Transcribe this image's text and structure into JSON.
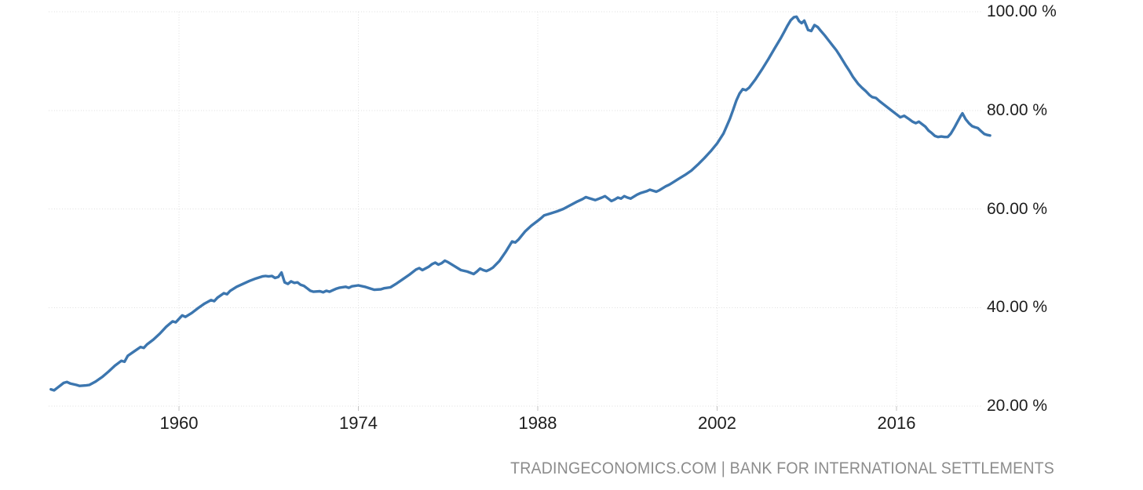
{
  "chart": {
    "attribution": {
      "left": "TRADINGECONOMICS.COM",
      "separator": " | ",
      "right": "BANK FOR INTERNATIONAL SETTLEMENTS"
    },
    "colors": {
      "line": "#3c76af",
      "grid": "#dfdfdf",
      "tick": "#c3c3c3",
      "axis_text": "#1d1d1d",
      "attribution_text": "#8c8c8c",
      "background": "#ffffff"
    }
  },
  "chart_data": {
    "type": "line",
    "title": "",
    "grid": {
      "style": "dotted",
      "horizontal": true,
      "vertical": true
    },
    "x_axis": {
      "ticks": [
        1960,
        1974,
        1988,
        2002,
        2016
      ],
      "tick_labels": [
        "1960",
        "1974",
        "1988",
        "2002",
        "2016"
      ],
      "range_years": [
        1950.0,
        2023.3
      ]
    },
    "y_axis": {
      "side": "right",
      "unit": "%",
      "ticks": [
        100,
        80,
        60,
        40,
        20
      ],
      "tick_labels": [
        "100.00 %",
        "80.00 %",
        "60.00 %",
        "40.00 %",
        "20.00 %"
      ],
      "range": [
        20,
        100
      ]
    },
    "series": [
      {
        "color": "#3c76af",
        "points": [
          [
            1950.0,
            23.4
          ],
          [
            1950.25,
            23.2
          ],
          [
            1950.5,
            23.7
          ],
          [
            1950.75,
            24.2
          ],
          [
            1951.0,
            24.7
          ],
          [
            1951.25,
            24.9
          ],
          [
            1951.5,
            24.6
          ],
          [
            1952.0,
            24.3
          ],
          [
            1952.25,
            24.1
          ],
          [
            1952.75,
            24.2
          ],
          [
            1953.0,
            24.3
          ],
          [
            1953.5,
            25.0
          ],
          [
            1954.0,
            25.9
          ],
          [
            1954.5,
            27.0
          ],
          [
            1955.0,
            28.2
          ],
          [
            1955.25,
            28.7
          ],
          [
            1955.5,
            29.2
          ],
          [
            1955.75,
            29.0
          ],
          [
            1956.0,
            30.2
          ],
          [
            1956.5,
            31.1
          ],
          [
            1957.0,
            32.0
          ],
          [
            1957.25,
            31.8
          ],
          [
            1957.5,
            32.5
          ],
          [
            1958.0,
            33.5
          ],
          [
            1958.5,
            34.7
          ],
          [
            1959.0,
            36.1
          ],
          [
            1959.5,
            37.2
          ],
          [
            1959.75,
            37.0
          ],
          [
            1960.0,
            37.7
          ],
          [
            1960.25,
            38.4
          ],
          [
            1960.5,
            38.1
          ],
          [
            1961.0,
            38.9
          ],
          [
            1961.5,
            39.9
          ],
          [
            1962.0,
            40.8
          ],
          [
            1962.5,
            41.5
          ],
          [
            1962.75,
            41.3
          ],
          [
            1963.0,
            42.0
          ],
          [
            1963.5,
            42.9
          ],
          [
            1963.75,
            42.7
          ],
          [
            1964.0,
            43.4
          ],
          [
            1964.5,
            44.2
          ],
          [
            1965.0,
            44.8
          ],
          [
            1965.5,
            45.4
          ],
          [
            1966.0,
            45.9
          ],
          [
            1966.5,
            46.3
          ],
          [
            1966.75,
            46.4
          ],
          [
            1967.0,
            46.3
          ],
          [
            1967.25,
            46.4
          ],
          [
            1967.5,
            46.0
          ],
          [
            1967.75,
            46.2
          ],
          [
            1968.0,
            47.1
          ],
          [
            1968.25,
            45.1
          ],
          [
            1968.5,
            44.8
          ],
          [
            1968.75,
            45.3
          ],
          [
            1969.0,
            45.0
          ],
          [
            1969.25,
            45.1
          ],
          [
            1969.5,
            44.6
          ],
          [
            1969.75,
            44.4
          ],
          [
            1970.0,
            43.9
          ],
          [
            1970.25,
            43.4
          ],
          [
            1970.5,
            43.2
          ],
          [
            1971.0,
            43.3
          ],
          [
            1971.25,
            43.1
          ],
          [
            1971.5,
            43.4
          ],
          [
            1971.75,
            43.2
          ],
          [
            1972.0,
            43.5
          ],
          [
            1972.25,
            43.8
          ],
          [
            1972.5,
            44.0
          ],
          [
            1973.0,
            44.2
          ],
          [
            1973.25,
            44.0
          ],
          [
            1973.5,
            44.3
          ],
          [
            1974.0,
            44.5
          ],
          [
            1974.5,
            44.2
          ],
          [
            1975.0,
            43.8
          ],
          [
            1975.25,
            43.6
          ],
          [
            1975.75,
            43.7
          ],
          [
            1976.0,
            43.9
          ],
          [
            1976.5,
            44.1
          ],
          [
            1977.0,
            44.9
          ],
          [
            1977.5,
            45.8
          ],
          [
            1978.0,
            46.7
          ],
          [
            1978.5,
            47.7
          ],
          [
            1978.75,
            48.0
          ],
          [
            1979.0,
            47.6
          ],
          [
            1979.5,
            48.3
          ],
          [
            1979.75,
            48.8
          ],
          [
            1980.0,
            49.1
          ],
          [
            1980.25,
            48.7
          ],
          [
            1980.5,
            49.0
          ],
          [
            1980.75,
            49.5
          ],
          [
            1981.0,
            49.2
          ],
          [
            1981.25,
            48.8
          ],
          [
            1981.5,
            48.4
          ],
          [
            1982.0,
            47.6
          ],
          [
            1982.5,
            47.3
          ],
          [
            1983.0,
            46.8
          ],
          [
            1983.25,
            47.3
          ],
          [
            1983.5,
            47.9
          ],
          [
            1983.75,
            47.6
          ],
          [
            1984.0,
            47.4
          ],
          [
            1984.25,
            47.7
          ],
          [
            1984.5,
            48.1
          ],
          [
            1985.0,
            49.4
          ],
          [
            1985.5,
            51.3
          ],
          [
            1986.0,
            53.4
          ],
          [
            1986.25,
            53.2
          ],
          [
            1986.5,
            53.8
          ],
          [
            1987.0,
            55.4
          ],
          [
            1987.5,
            56.6
          ],
          [
            1988.0,
            57.6
          ],
          [
            1988.25,
            58.1
          ],
          [
            1988.5,
            58.7
          ],
          [
            1989.0,
            59.1
          ],
          [
            1989.5,
            59.5
          ],
          [
            1990.0,
            60.0
          ],
          [
            1990.5,
            60.7
          ],
          [
            1991.0,
            61.4
          ],
          [
            1991.5,
            62.0
          ],
          [
            1991.75,
            62.4
          ],
          [
            1992.0,
            62.2
          ],
          [
            1992.5,
            61.8
          ],
          [
            1993.0,
            62.3
          ],
          [
            1993.25,
            62.6
          ],
          [
            1993.5,
            62.1
          ],
          [
            1993.75,
            61.6
          ],
          [
            1994.0,
            61.9
          ],
          [
            1994.25,
            62.3
          ],
          [
            1994.5,
            62.1
          ],
          [
            1994.75,
            62.6
          ],
          [
            1995.0,
            62.3
          ],
          [
            1995.25,
            62.1
          ],
          [
            1995.5,
            62.5
          ],
          [
            1995.75,
            62.9
          ],
          [
            1996.0,
            63.2
          ],
          [
            1996.5,
            63.6
          ],
          [
            1996.75,
            63.9
          ],
          [
            1997.0,
            63.7
          ],
          [
            1997.25,
            63.5
          ],
          [
            1997.5,
            63.8
          ],
          [
            1997.75,
            64.2
          ],
          [
            1998.0,
            64.6
          ],
          [
            1998.25,
            64.9
          ],
          [
            1998.5,
            65.3
          ],
          [
            1999.0,
            66.1
          ],
          [
            1999.5,
            66.9
          ],
          [
            2000.0,
            67.8
          ],
          [
            2000.5,
            69.0
          ],
          [
            2001.0,
            70.3
          ],
          [
            2001.5,
            71.7
          ],
          [
            2002.0,
            73.3
          ],
          [
            2002.25,
            74.3
          ],
          [
            2002.5,
            75.3
          ],
          [
            2002.75,
            76.8
          ],
          [
            2003.0,
            78.3
          ],
          [
            2003.25,
            80.1
          ],
          [
            2003.5,
            82.0
          ],
          [
            2003.75,
            83.4
          ],
          [
            2004.0,
            84.3
          ],
          [
            2004.25,
            84.1
          ],
          [
            2004.5,
            84.6
          ],
          [
            2005.0,
            86.3
          ],
          [
            2005.5,
            88.3
          ],
          [
            2006.0,
            90.4
          ],
          [
            2006.5,
            92.6
          ],
          [
            2007.0,
            94.8
          ],
          [
            2007.25,
            96.0
          ],
          [
            2007.5,
            97.2
          ],
          [
            2007.75,
            98.3
          ],
          [
            2008.0,
            98.9
          ],
          [
            2008.2,
            99.0
          ],
          [
            2008.4,
            98.1
          ],
          [
            2008.6,
            97.7
          ],
          [
            2008.8,
            98.2
          ],
          [
            2009.1,
            96.3
          ],
          [
            2009.35,
            96.1
          ],
          [
            2009.6,
            97.3
          ],
          [
            2009.85,
            96.9
          ],
          [
            2010.1,
            96.1
          ],
          [
            2010.4,
            95.2
          ],
          [
            2010.7,
            94.2
          ],
          [
            2011.0,
            93.2
          ],
          [
            2011.3,
            92.2
          ],
          [
            2011.6,
            91.0
          ],
          [
            2012.0,
            89.3
          ],
          [
            2012.3,
            88.1
          ],
          [
            2012.6,
            86.8
          ],
          [
            2013.0,
            85.4
          ],
          [
            2013.3,
            84.6
          ],
          [
            2013.6,
            83.9
          ],
          [
            2013.9,
            83.1
          ],
          [
            2014.1,
            82.7
          ],
          [
            2014.4,
            82.5
          ],
          [
            2014.7,
            81.8
          ],
          [
            2015.0,
            81.2
          ],
          [
            2015.5,
            80.2
          ],
          [
            2016.0,
            79.2
          ],
          [
            2016.3,
            78.6
          ],
          [
            2016.6,
            78.9
          ],
          [
            2017.0,
            78.2
          ],
          [
            2017.25,
            77.7
          ],
          [
            2017.5,
            77.4
          ],
          [
            2017.75,
            77.7
          ],
          [
            2018.0,
            77.2
          ],
          [
            2018.25,
            76.7
          ],
          [
            2018.5,
            75.9
          ],
          [
            2018.75,
            75.4
          ],
          [
            2019.0,
            74.8
          ],
          [
            2019.25,
            74.6
          ],
          [
            2019.5,
            74.7
          ],
          [
            2019.75,
            74.6
          ],
          [
            2020.0,
            74.6
          ],
          [
            2020.25,
            75.3
          ],
          [
            2020.5,
            76.4
          ],
          [
            2020.75,
            77.6
          ],
          [
            2021.0,
            78.8
          ],
          [
            2021.15,
            79.4
          ],
          [
            2021.4,
            78.2
          ],
          [
            2021.65,
            77.4
          ],
          [
            2021.9,
            76.8
          ],
          [
            2022.1,
            76.6
          ],
          [
            2022.35,
            76.4
          ],
          [
            2022.6,
            75.8
          ],
          [
            2022.85,
            75.2
          ],
          [
            2023.1,
            75.0
          ],
          [
            2023.3,
            74.9
          ]
        ]
      }
    ]
  }
}
